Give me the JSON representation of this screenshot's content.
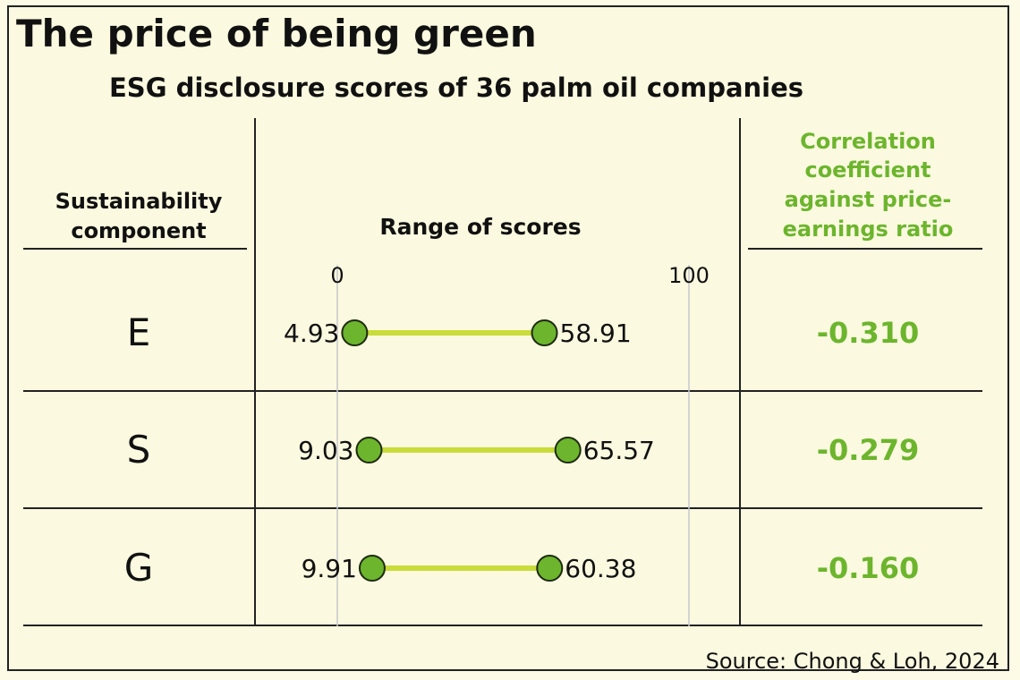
{
  "title": "The price of being green",
  "subtitle": "ESG disclosure scores of 36 palm oil companies",
  "headers": {
    "component": [
      "Sustainability",
      "component"
    ],
    "range": "Range of scores",
    "correlation": [
      "Correlation",
      "coefficient",
      "against price-",
      "earnings ratio"
    ]
  },
  "source": "Source: Chong & Loh, 2024",
  "colors": {
    "dot": "#6cb52d",
    "bar": "#c9dc3a",
    "correlation_text": "#6cb52d",
    "background": "#fbf9df"
  },
  "chart_data": {
    "type": "dumbbell",
    "xlim": [
      0,
      100
    ],
    "tick_labels": [
      "0",
      "100"
    ],
    "rows": [
      {
        "component": "E",
        "min": 4.93,
        "max": 58.91,
        "min_label": "4.93",
        "max_label": "58.91",
        "correlation": "-0.310"
      },
      {
        "component": "S",
        "min": 9.03,
        "max": 65.57,
        "min_label": "9.03",
        "max_label": "65.57",
        "correlation": "-0.279"
      },
      {
        "component": "G",
        "min": 9.91,
        "max": 60.38,
        "min_label": "9.91",
        "max_label": "60.38",
        "correlation": "-0.160"
      }
    ]
  }
}
